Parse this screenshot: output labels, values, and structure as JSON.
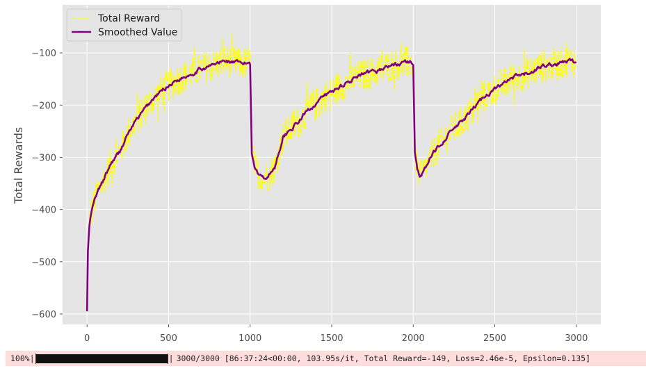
{
  "chart_data": {
    "type": "line",
    "title": "",
    "xlabel": "",
    "ylabel": "Total Rewards",
    "xlim": [
      -150,
      3150
    ],
    "ylim": [
      -620,
      -8
    ],
    "xticks": [
      0,
      500,
      1000,
      1500,
      2000,
      2500,
      3000
    ],
    "yticks": [
      -600,
      -500,
      -400,
      -300,
      -200,
      -100
    ],
    "ytick_labels": [
      "−600",
      "−500",
      "−400",
      "−300",
      "−200",
      "−100"
    ],
    "grid": true,
    "legend": "top-left",
    "series": [
      {
        "name": "Total Reward",
        "style": "dashed",
        "color": "#ffff00",
        "description": "noisy per-episode reward, roughly smoothed value ± 30",
        "noise_amplitude": 32
      },
      {
        "name": "Smoothed Value",
        "style": "solid",
        "color": "#800080",
        "points": [
          [
            0,
            -595
          ],
          [
            5,
            -480
          ],
          [
            15,
            -430
          ],
          [
            30,
            -400
          ],
          [
            60,
            -370
          ],
          [
            100,
            -345
          ],
          [
            150,
            -310
          ],
          [
            200,
            -290
          ],
          [
            250,
            -255
          ],
          [
            300,
            -230
          ],
          [
            350,
            -210
          ],
          [
            400,
            -190
          ],
          [
            450,
            -175
          ],
          [
            500,
            -162
          ],
          [
            550,
            -152
          ],
          [
            600,
            -145
          ],
          [
            650,
            -138
          ],
          [
            700,
            -130
          ],
          [
            750,
            -126
          ],
          [
            800,
            -120
          ],
          [
            850,
            -115
          ],
          [
            900,
            -118
          ],
          [
            950,
            -122
          ],
          [
            995,
            -118
          ],
          [
            1000,
            -120
          ],
          [
            1010,
            -290
          ],
          [
            1030,
            -320
          ],
          [
            1060,
            -335
          ],
          [
            1100,
            -338
          ],
          [
            1150,
            -320
          ],
          [
            1200,
            -262
          ],
          [
            1250,
            -245
          ],
          [
            1300,
            -232
          ],
          [
            1350,
            -210
          ],
          [
            1400,
            -198
          ],
          [
            1450,
            -185
          ],
          [
            1500,
            -175
          ],
          [
            1550,
            -165
          ],
          [
            1600,
            -155
          ],
          [
            1650,
            -148
          ],
          [
            1700,
            -142
          ],
          [
            1750,
            -138
          ],
          [
            1800,
            -132
          ],
          [
            1850,
            -125
          ],
          [
            1900,
            -122
          ],
          [
            1950,
            -118
          ],
          [
            1995,
            -118
          ],
          [
            2000,
            -122
          ],
          [
            2010,
            -290
          ],
          [
            2025,
            -320
          ],
          [
            2040,
            -335
          ],
          [
            2060,
            -330
          ],
          [
            2100,
            -305
          ],
          [
            2150,
            -280
          ],
          [
            2200,
            -262
          ],
          [
            2250,
            -245
          ],
          [
            2300,
            -232
          ],
          [
            2350,
            -215
          ],
          [
            2400,
            -195
          ],
          [
            2450,
            -180
          ],
          [
            2500,
            -170
          ],
          [
            2550,
            -160
          ],
          [
            2600,
            -150
          ],
          [
            2650,
            -145
          ],
          [
            2700,
            -140
          ],
          [
            2750,
            -132
          ],
          [
            2800,
            -125
          ],
          [
            2850,
            -123
          ],
          [
            2900,
            -120
          ],
          [
            2950,
            -115
          ],
          [
            3000,
            -118
          ]
        ]
      }
    ]
  },
  "progress": {
    "percent_label": "100%|",
    "fraction": 1.0,
    "bar_end": "|",
    "status": "3000/3000 [86:37:24<00:00, 103.95s/it, Total Reward=-149, Loss=2.46e-5, Epsilon=0.135]"
  }
}
